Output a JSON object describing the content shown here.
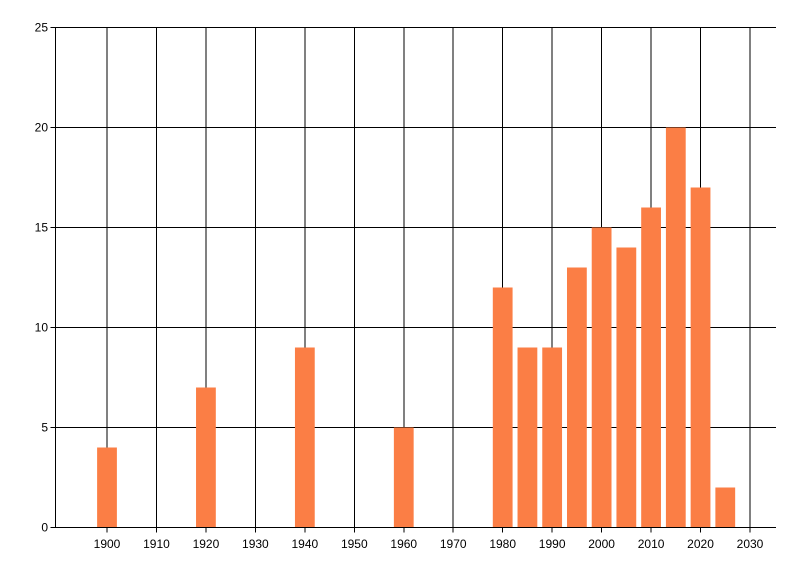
{
  "chart_data": {
    "type": "bar",
    "series": [
      {
        "name": "values",
        "points": [
          {
            "x": 1900,
            "y": 4
          },
          {
            "x": 1920,
            "y": 7
          },
          {
            "x": 1940,
            "y": 9
          },
          {
            "x": 1960,
            "y": 5
          },
          {
            "x": 1980,
            "y": 12
          },
          {
            "x": 1985,
            "y": 9
          },
          {
            "x": 1990,
            "y": 9
          },
          {
            "x": 1995,
            "y": 13
          },
          {
            "x": 2000,
            "y": 15
          },
          {
            "x": 2005,
            "y": 14
          },
          {
            "x": 2010,
            "y": 16
          },
          {
            "x": 2015,
            "y": 20
          },
          {
            "x": 2020,
            "y": 17
          },
          {
            "x": 2025,
            "y": 2
          }
        ]
      }
    ],
    "x_tick_labels": [
      "1900",
      "1910",
      "1920",
      "1930",
      "1940",
      "1950",
      "1960",
      "1970",
      "1980",
      "1990",
      "2000",
      "2010",
      "2020",
      "2030"
    ],
    "x_ticks": [
      1900,
      1910,
      1920,
      1930,
      1940,
      1950,
      1960,
      1970,
      1980,
      1990,
      2000,
      2010,
      2020,
      2030
    ],
    "y_ticks": [
      0,
      5,
      10,
      15,
      20,
      25
    ],
    "y_tick_labels": [
      "0",
      "5",
      "10",
      "15",
      "20",
      "25"
    ],
    "xlim": [
      1889.5,
      2035.3
    ],
    "ylim": [
      0,
      25
    ],
    "title": "",
    "xlabel": "",
    "ylabel": "",
    "grid": true,
    "legend": false,
    "bar_width_years": 4,
    "colors": {
      "bar_fill": "#fb7e45",
      "grid_line": "#000000",
      "axis_line": "#000000",
      "tick_label": "#000000",
      "background": "#ffffff"
    }
  }
}
